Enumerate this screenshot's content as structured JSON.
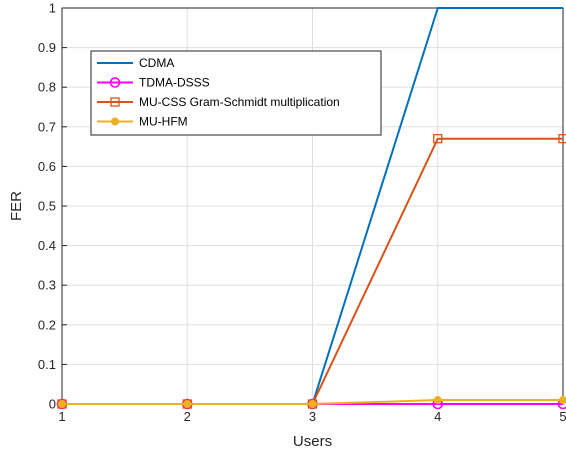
{
  "chart_data": {
    "type": "line",
    "title": "",
    "xlabel": "Users",
    "ylabel": "FER",
    "xlim": [
      1,
      5
    ],
    "ylim": [
      0,
      1
    ],
    "xticks": [
      "1",
      "2",
      "3",
      "4",
      "5"
    ],
    "yticks": [
      "0",
      "0.1",
      "0.2",
      "0.3",
      "0.4",
      "0.5",
      "0.6",
      "0.7",
      "0.8",
      "0.9",
      "1"
    ],
    "grid": true,
    "legend_position": "top-left",
    "x": [
      1,
      2,
      3,
      4,
      5
    ],
    "series": [
      {
        "name": "CDMA",
        "values": [
          0,
          0,
          0,
          1,
          1
        ],
        "color": "#0072BD",
        "marker": "none"
      },
      {
        "name": "TDMA-DSSS",
        "values": [
          0,
          0,
          0,
          0,
          0
        ],
        "color": "#FF00FF",
        "marker": "circle"
      },
      {
        "name": "MU-CSS Gram-Schmidt multiplication",
        "values": [
          0,
          0,
          0,
          0.67,
          0.67
        ],
        "color": "#D95319",
        "marker": "square"
      },
      {
        "name": "MU-HFM",
        "values": [
          0,
          0,
          0,
          0.01,
          0.01
        ],
        "color": "#EDB120",
        "marker": "filled-circle"
      }
    ]
  }
}
